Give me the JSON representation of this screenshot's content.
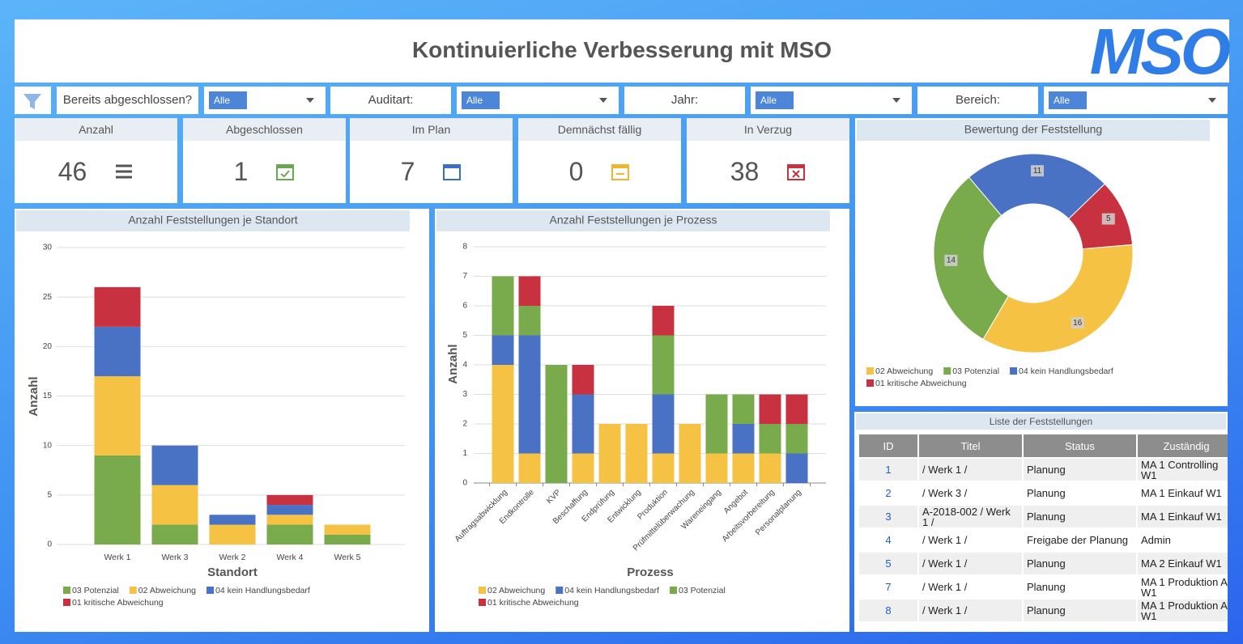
{
  "header": {
    "title": "Kontinuierliche Verbesserung mit MSO",
    "logo": "MSO"
  },
  "filters": [
    {
      "label": "Bereits abgeschlossen?",
      "value": "Alle"
    },
    {
      "label": "Auditart:",
      "value": "Alle"
    },
    {
      "label": "Jahr:",
      "value": "Alle"
    },
    {
      "label": "Bereich:",
      "value": "Alle"
    }
  ],
  "kpis": [
    {
      "label": "Anzahl",
      "value": 46
    },
    {
      "label": "Abgeschlossen",
      "value": 1
    },
    {
      "label": "Im Plan",
      "value": 7
    },
    {
      "label": "Demnächst fällig",
      "value": 0
    },
    {
      "label": "In Verzug",
      "value": 38
    }
  ],
  "chart_data": [
    {
      "type": "bar",
      "stacked": true,
      "title": "Anzahl Feststellungen je Standort",
      "xlabel": "Standort",
      "ylabel": "Anzahl",
      "categories": [
        "Werk 1",
        "Werk 3",
        "Werk 2",
        "Werk 4",
        "Werk 5"
      ],
      "series": [
        {
          "name": "03 Potenzial",
          "color": "#79ab4d",
          "values": [
            9,
            2,
            0,
            2,
            1
          ]
        },
        {
          "name": "02 Abweichung",
          "color": "#f5c243",
          "values": [
            8,
            4,
            2,
            1,
            1
          ]
        },
        {
          "name": "04 kein Handlungsbedarf",
          "color": "#4a72c4",
          "values": [
            5,
            4,
            1,
            1,
            0
          ]
        },
        {
          "name": "01 kritische Abweichung",
          "color": "#c8313f",
          "values": [
            4,
            0,
            0,
            1,
            0
          ]
        }
      ],
      "ylim": [
        0,
        30
      ],
      "yticks": [
        0,
        5,
        10,
        15,
        20,
        25,
        30
      ],
      "grid": true
    },
    {
      "type": "bar",
      "stacked": true,
      "title": "Anzahl Feststellungen je Prozess",
      "xlabel": "Prozess",
      "ylabel": "Anzahl",
      "categories": [
        "Auftragsabwicklung",
        "Endkontrolle",
        "KVP",
        "Beschaffung",
        "Endprüfung",
        "Entwicklung",
        "Produktion",
        "Prüfmittelüberwachung",
        "Wareneingang",
        "Angebot",
        "Arbeitsvorbereitung",
        "Personalplanung"
      ],
      "series": [
        {
          "name": "02 Abweichung",
          "color": "#f5c243",
          "values": [
            4,
            1,
            0,
            1,
            2,
            2,
            1,
            2,
            1,
            1,
            1,
            0
          ]
        },
        {
          "name": "04 kein Handlungsbedarf",
          "color": "#4a72c4",
          "values": [
            1,
            4,
            0,
            2,
            0,
            0,
            2,
            0,
            0,
            1,
            0,
            1
          ]
        },
        {
          "name": "03 Potenzial",
          "color": "#79ab4d",
          "values": [
            2,
            1,
            4,
            0,
            0,
            0,
            2,
            0,
            2,
            1,
            1,
            1
          ]
        },
        {
          "name": "01 kritische Abweichung",
          "color": "#c8313f",
          "values": [
            0,
            1,
            0,
            1,
            0,
            0,
            1,
            0,
            0,
            0,
            1,
            1
          ]
        }
      ],
      "ylim": [
        0,
        8
      ],
      "yticks": [
        0,
        1,
        2,
        3,
        4,
        5,
        6,
        7,
        8
      ],
      "grid": true
    },
    {
      "type": "pie",
      "title": "Bewertung der Feststellung",
      "categories": [
        "02 Abweichung",
        "03 Potenzial",
        "04 kein Handlungsbedarf",
        "01 kritische Abweichung"
      ],
      "values": [
        16,
        14,
        11,
        5
      ],
      "colors": [
        "#f5c243",
        "#79ab4d",
        "#4a72c4",
        "#c8313f"
      ]
    }
  ],
  "table": {
    "title": "Liste der Feststellungen",
    "columns": [
      "ID",
      "Titel",
      "Status",
      "Zuständig"
    ],
    "rows": [
      [
        1,
        "/ Werk 1 /",
        "Planung",
        "MA 1 Controlling W1"
      ],
      [
        2,
        "/ Werk 3 /",
        "Planung",
        "MA 1 Einkauf W1"
      ],
      [
        3,
        "A-2018-002 / Werk 1 /",
        "Planung",
        "MA 1 Einkauf W1"
      ],
      [
        4,
        "/ Werk 1 /",
        "Freigabe der Planung",
        "Admin"
      ],
      [
        5,
        "/ Werk 1 /",
        "Planung",
        "MA 2 Einkauf W1"
      ],
      [
        7,
        "/ Werk 1 /",
        "Planung",
        "MA 1 Produktion A W1"
      ],
      [
        8,
        "/ Werk 1 /",
        "Planung",
        "MA 1 Produktion A W1"
      ]
    ]
  }
}
